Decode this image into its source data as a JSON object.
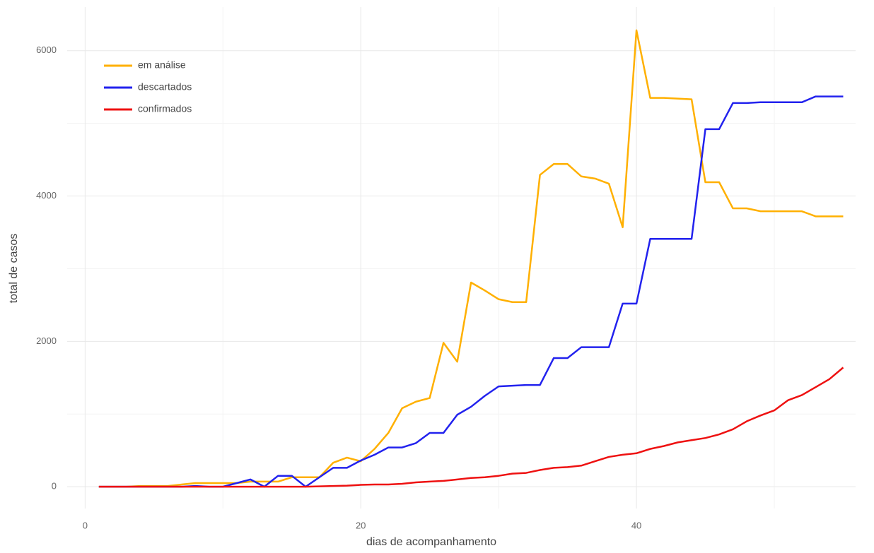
{
  "chart_data": {
    "type": "line",
    "xlabel": "dias de acompanhamento",
    "ylabel": "total de casos",
    "x": [
      1,
      2,
      3,
      4,
      5,
      6,
      7,
      8,
      9,
      10,
      11,
      12,
      13,
      14,
      15,
      16,
      17,
      18,
      19,
      20,
      21,
      22,
      23,
      24,
      25,
      26,
      27,
      28,
      29,
      30,
      31,
      32,
      33,
      34,
      35,
      36,
      37,
      38,
      39,
      40,
      41,
      42,
      43,
      44,
      45,
      46,
      47,
      48,
      49,
      50,
      51,
      52,
      53,
      54,
      55
    ],
    "series": [
      {
        "name": "em análise",
        "color": "#ffb000",
        "values": [
          0,
          0,
          0,
          10,
          10,
          10,
          30,
          50,
          50,
          50,
          50,
          70,
          70,
          70,
          130,
          130,
          130,
          330,
          400,
          350,
          520,
          740,
          1080,
          1170,
          1220,
          1980,
          1720,
          2810,
          2700,
          2580,
          2540,
          2540,
          4290,
          4440,
          4440,
          4270,
          4240,
          4170,
          3570,
          6280,
          5350,
          5350,
          5340,
          5330,
          4190,
          4190,
          3830,
          3830,
          3790,
          3790,
          3790,
          3790,
          3720,
          3720,
          3720
        ]
      },
      {
        "name": "descartados",
        "color": "#2222ee",
        "values": [
          0,
          0,
          0,
          0,
          0,
          0,
          0,
          10,
          0,
          0,
          50,
          100,
          0,
          150,
          150,
          0,
          130,
          260,
          260,
          360,
          440,
          540,
          540,
          600,
          740,
          740,
          990,
          1100,
          1250,
          1380,
          1390,
          1400,
          1400,
          1770,
          1770,
          1920,
          1920,
          1920,
          2520,
          2520,
          3410,
          3410,
          3410,
          3410,
          4920,
          4920,
          5280,
          5280,
          5290,
          5290,
          5290,
          5290,
          5370,
          5370,
          5370
        ]
      },
      {
        "name": "confirmados",
        "color": "#ee1111",
        "values": [
          0,
          0,
          0,
          0,
          0,
          0,
          0,
          0,
          0,
          0,
          0,
          0,
          0,
          0,
          0,
          0,
          5,
          10,
          15,
          25,
          30,
          30,
          40,
          60,
          70,
          80,
          100,
          120,
          130,
          150,
          180,
          190,
          230,
          260,
          270,
          290,
          350,
          410,
          440,
          460,
          520,
          560,
          610,
          640,
          670,
          720,
          790,
          900,
          980,
          1050,
          1190,
          1260,
          1370,
          1480,
          1640
        ]
      }
    ],
    "xlim": [
      -1.3,
      55.9
    ],
    "ylim": [
      -300,
      6600
    ],
    "xticks": [
      0,
      20,
      40
    ],
    "yticks": [
      0,
      2000,
      4000,
      6000
    ],
    "xminor": [
      10,
      30,
      50
    ],
    "yminor": [
      1000,
      3000,
      5000
    ],
    "grid": true,
    "legend": "top-left"
  }
}
